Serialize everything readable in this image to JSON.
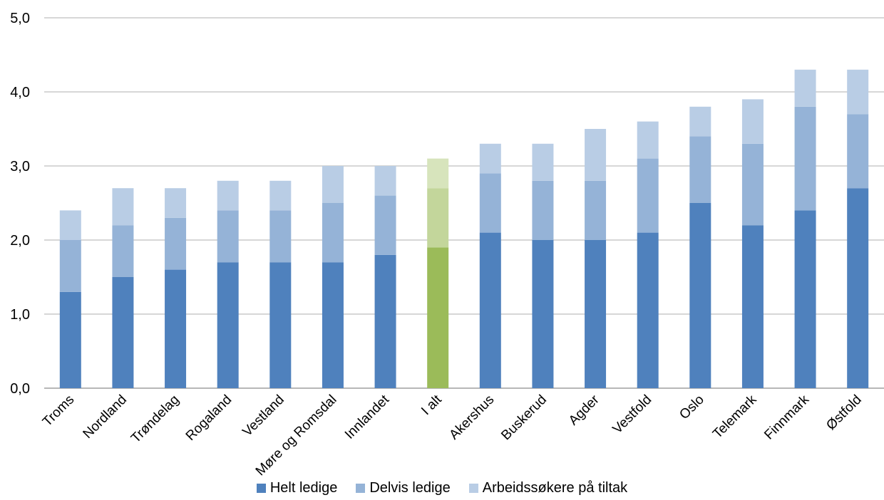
{
  "chart_data": {
    "type": "bar",
    "stacked": true,
    "categories": [
      "Troms",
      "Nordland",
      "Trøndelag",
      "Rogaland",
      "Vestland",
      "Møre og Romsdal",
      "Innlandet",
      "I alt",
      "Akershus",
      "Buskerud",
      "Agder",
      "Vestfold",
      "Oslo",
      "Telemark",
      "Finnmark",
      "Østfold"
    ],
    "series": [
      {
        "name": "Helt ledige",
        "values": [
          1.3,
          1.5,
          1.6,
          1.7,
          1.7,
          1.7,
          1.8,
          1.9,
          2.1,
          2.0,
          2.0,
          2.1,
          2.5,
          2.2,
          2.4,
          2.7
        ]
      },
      {
        "name": "Delvis ledige",
        "values": [
          0.7,
          0.7,
          0.7,
          0.7,
          0.7,
          0.8,
          0.8,
          0.8,
          0.8,
          0.8,
          0.8,
          1.0,
          0.9,
          1.1,
          1.4,
          1.0
        ]
      },
      {
        "name": "Arbeidssøkere på tiltak",
        "values": [
          0.4,
          0.5,
          0.4,
          0.4,
          0.4,
          0.5,
          0.4,
          0.4,
          0.4,
          0.5,
          0.7,
          0.5,
          0.4,
          0.6,
          0.5,
          0.6
        ]
      }
    ],
    "ylim": [
      0,
      5
    ],
    "yticks": [
      "0,0",
      "1,0",
      "2,0",
      "3,0",
      "4,0",
      "5,0"
    ],
    "grid": true,
    "legend_position": "bottom",
    "colors": [
      "#4f81bd",
      "#95b3d7",
      "#b9cde5"
    ],
    "highlight": {
      "category": "I alt",
      "colors": [
        "#9bbb59",
        "#c3d69b",
        "#d7e4bc"
      ]
    }
  }
}
